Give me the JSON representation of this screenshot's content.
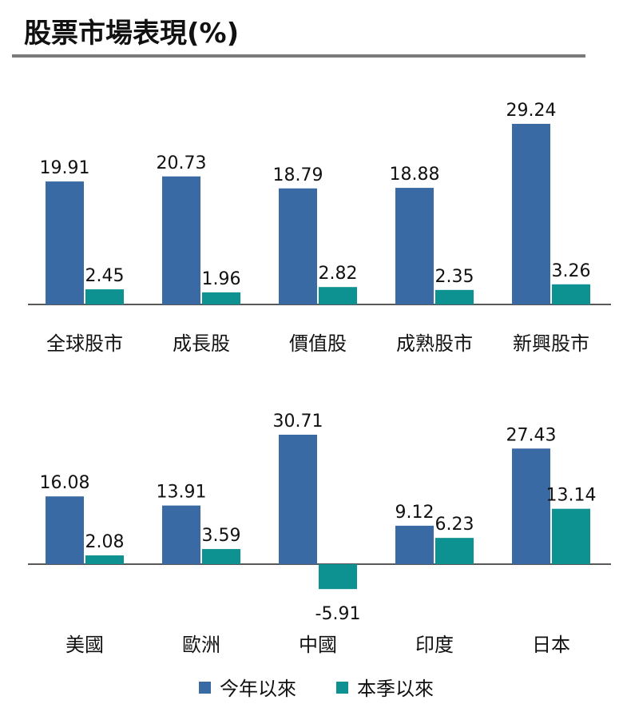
{
  "title": "股票市場表現(%)",
  "colors": {
    "ytd": "#3a6aa4",
    "qtd": "#0d9291"
  },
  "legend": [
    "今年以來",
    "本季以來"
  ],
  "chart_data": [
    {
      "type": "bar",
      "categories": [
        "全球股市",
        "成長股",
        "價值股",
        "成熟股市",
        "新興股市"
      ],
      "series": [
        {
          "name": "今年以來",
          "values": [
            19.91,
            20.73,
            18.79,
            18.88,
            29.24
          ]
        },
        {
          "name": "本季以來",
          "values": [
            2.45,
            1.96,
            2.82,
            2.35,
            3.26
          ]
        }
      ],
      "data_labels": [
        [
          "19.91",
          "20.73",
          "18.79",
          "18.88",
          "29.24"
        ],
        [
          "2.45",
          "1.96",
          "2.82",
          "2.35",
          "3.26"
        ]
      ]
    },
    {
      "type": "bar",
      "categories": [
        "美國",
        "歐洲",
        "中國",
        "印度",
        "日本"
      ],
      "series": [
        {
          "name": "今年以來",
          "values": [
            16.08,
            13.91,
            30.71,
            9.12,
            27.43
          ]
        },
        {
          "name": "本季以來",
          "values": [
            2.08,
            3.59,
            -5.91,
            6.23,
            13.14
          ]
        }
      ],
      "data_labels": [
        [
          "16.08",
          "13.91",
          "30.71",
          "9.12",
          "27.43"
        ],
        [
          "2.08",
          "3.59",
          "-5.91",
          "6.23",
          "13.14"
        ]
      ]
    }
  ]
}
